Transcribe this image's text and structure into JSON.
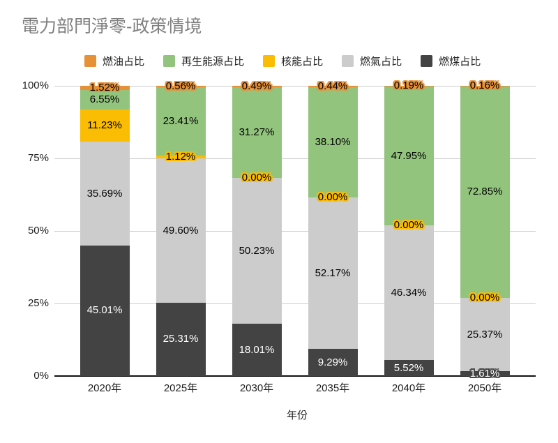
{
  "title": "電力部門淨零-政策情境",
  "legend": {
    "items": [
      {
        "label": "燃油占比",
        "color": "#E69138"
      },
      {
        "label": "再生能源占比",
        "color": "#93C47D"
      },
      {
        "label": "核能占比",
        "color": "#FBBC04"
      },
      {
        "label": "燃氣占比",
        "color": "#CCCCCC"
      },
      {
        "label": "燃煤占比",
        "color": "#434343"
      }
    ]
  },
  "chart_data": {
    "type": "bar",
    "subtype": "stacked-percentage",
    "title": "電力部門淨零-政策情境",
    "xlabel": "年份",
    "ylabel": "",
    "ylim": [
      0,
      100
    ],
    "y_ticks": [
      "0%",
      "25%",
      "50%",
      "75%",
      "100%"
    ],
    "grid": true,
    "legend_position": "top",
    "categories": [
      "2020年",
      "2025年",
      "2030年",
      "2035年",
      "2040年",
      "2050年"
    ],
    "series": [
      {
        "name": "燃油占比",
        "color": "#E69138",
        "label_color": "#000000",
        "values": [
          1.52,
          0.56,
          0.49,
          0.44,
          0.19,
          0.16
        ]
      },
      {
        "name": "再生能源占比",
        "color": "#93C47D",
        "label_color": "#000000",
        "values": [
          6.55,
          23.41,
          31.27,
          38.1,
          47.95,
          72.85
        ]
      },
      {
        "name": "核能占比",
        "color": "#FBBC04",
        "label_color": "#000000",
        "values": [
          11.23,
          1.12,
          0.0,
          0.0,
          0.0,
          0.0
        ]
      },
      {
        "name": "燃氣占比",
        "color": "#CCCCCC",
        "label_color": "#000000",
        "values": [
          35.69,
          49.6,
          50.23,
          52.17,
          46.34,
          25.37
        ]
      },
      {
        "name": "燃煤占比",
        "color": "#434343",
        "label_color": "#FFFFFF",
        "values": [
          45.01,
          25.31,
          18.01,
          9.29,
          5.52,
          1.61
        ]
      }
    ],
    "stack_order_bottom_to_top": [
      "燃煤占比",
      "燃氣占比",
      "核能占比",
      "再生能源占比",
      "燃油占比"
    ]
  }
}
